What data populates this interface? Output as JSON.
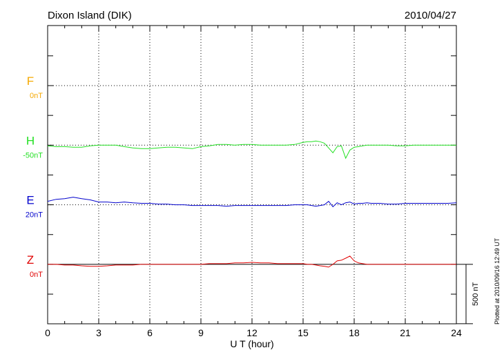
{
  "chart_data": {
    "type": "line",
    "title": "Dixon Island (DIK)",
    "date": "2010/04/27",
    "xlabel": "U T (hour)",
    "footnote": "Plotted at 2010/09/16 12:49 UT",
    "xlim": [
      0,
      24
    ],
    "xticks": [
      0,
      3,
      6,
      9,
      12,
      15,
      18,
      21,
      24
    ],
    "scale_bar": {
      "value": 500,
      "label": "500 nT"
    },
    "grid": true,
    "x": [
      0,
      0.5,
      1,
      1.5,
      2,
      2.5,
      3,
      3.5,
      4,
      4.5,
      5,
      5.5,
      6,
      6.5,
      7,
      7.5,
      8,
      8.5,
      9,
      9.5,
      10,
      10.5,
      11,
      11.5,
      12,
      12.5,
      13,
      13.5,
      14,
      14.5,
      15,
      15.25,
      15.5,
      15.75,
      16,
      16.25,
      16.5,
      16.75,
      17,
      17.25,
      17.5,
      17.75,
      18,
      18.25,
      18.5,
      18.75,
      19,
      19.5,
      20,
      20.5,
      21,
      21.5,
      22,
      22.5,
      23,
      23.5,
      24
    ],
    "series": [
      {
        "name": "F",
        "color": "#f5a800",
        "baseline": {
          "value": 0,
          "label": "0nT"
        },
        "values": [
          null,
          null,
          null,
          null,
          null,
          null,
          null,
          null,
          null,
          null,
          null,
          null,
          null,
          null,
          null,
          null,
          null,
          null,
          null,
          null,
          null,
          null,
          null,
          null,
          null,
          null,
          null,
          null,
          null,
          null,
          null,
          null,
          null,
          null,
          null,
          null,
          null,
          null,
          null,
          null,
          null,
          null,
          null,
          null,
          null,
          null,
          null,
          null,
          null,
          null,
          null,
          null,
          null,
          null,
          null,
          null,
          null
        ]
      },
      {
        "name": "H",
        "color": "#22e022",
        "baseline": {
          "value": -50,
          "label": "-50nT"
        },
        "values": [
          -56,
          -62,
          -62,
          -67,
          -67,
          -56,
          -50,
          -50,
          -50,
          -62,
          -73,
          -79,
          -79,
          -73,
          -67,
          -67,
          -73,
          -79,
          -62,
          -56,
          -44,
          -44,
          -50,
          -44,
          -44,
          -50,
          -50,
          -50,
          -50,
          -44,
          -27,
          -21,
          -21,
          -15,
          -21,
          -33,
          -73,
          -114,
          -62,
          -56,
          -160,
          -91,
          -67,
          -62,
          -56,
          -50,
          -50,
          -50,
          -50,
          -56,
          -56,
          -50,
          -50,
          -50,
          -50,
          -50,
          -50
        ]
      },
      {
        "name": "E",
        "color": "#0000cc",
        "baseline": {
          "value": 20,
          "label": "20nT"
        },
        "values": [
          49,
          66,
          72,
          84,
          72,
          61,
          43,
          43,
          37,
          43,
          37,
          32,
          32,
          26,
          26,
          20,
          20,
          14,
          14,
          14,
          14,
          8,
          14,
          14,
          14,
          14,
          14,
          14,
          14,
          20,
          20,
          20,
          14,
          8,
          14,
          20,
          49,
          3,
          37,
          20,
          37,
          43,
          26,
          32,
          32,
          37,
          32,
          32,
          26,
          26,
          32,
          32,
          32,
          32,
          32,
          32,
          37
        ]
      },
      {
        "name": "Z",
        "color": "#e00000",
        "baseline": {
          "value": 0,
          "label": "0nT"
        },
        "values": [
          0,
          0,
          -6,
          -6,
          -12,
          -17,
          -17,
          -12,
          -6,
          -6,
          -6,
          0,
          0,
          0,
          0,
          0,
          0,
          0,
          0,
          6,
          6,
          6,
          12,
          12,
          17,
          12,
          12,
          6,
          6,
          6,
          6,
          0,
          0,
          -6,
          -12,
          -17,
          -23,
          0,
          29,
          35,
          52,
          70,
          29,
          12,
          6,
          0,
          0,
          0,
          0,
          0,
          0,
          0,
          0,
          0,
          0,
          0,
          0
        ]
      }
    ]
  }
}
